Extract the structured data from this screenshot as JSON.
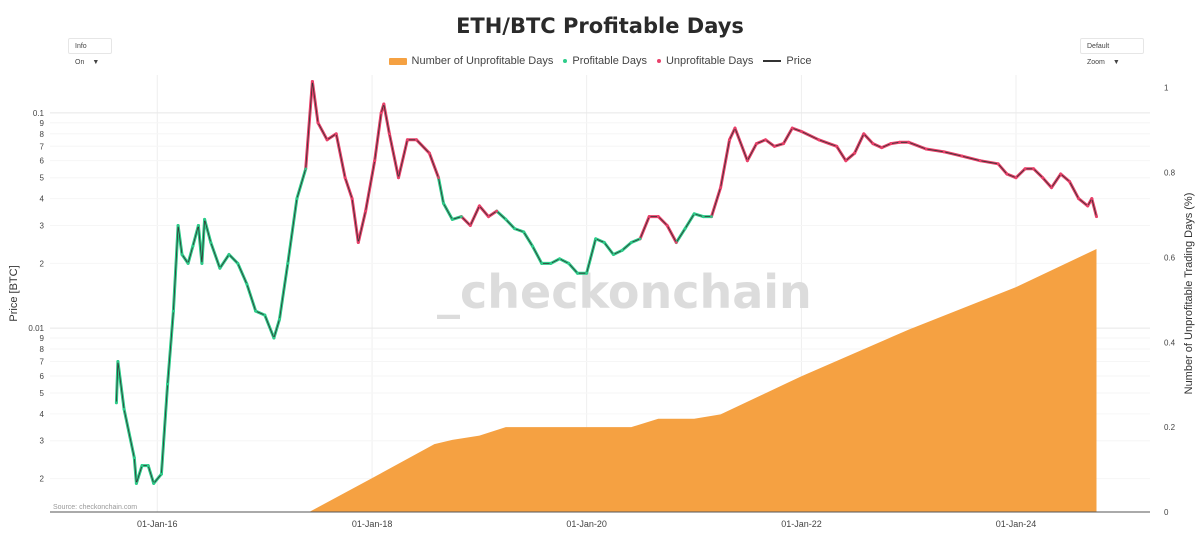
{
  "header": {
    "title": "ETH/BTC Profitable Days"
  },
  "controls": {
    "info_label": "Info On",
    "zoom_label": "Default Zoom"
  },
  "legend": [
    {
      "label": "Number of Unprofitable Days",
      "kind": "bar",
      "color": "#f5a142"
    },
    {
      "label": "Profitable Days",
      "kind": "dot",
      "color": "#2ecc8a"
    },
    {
      "label": "Unprofitable Days",
      "kind": "dot",
      "color": "#e8416a"
    },
    {
      "label": "Price",
      "kind": "line",
      "color": "#333333"
    }
  ],
  "watermark": "_checkonchain",
  "source": "Source: checkonchain.com",
  "chart_data": {
    "type": "line",
    "title": "ETH/BTC Profitable Days",
    "ylabel": "Price [BTC]",
    "y2label": "Number of Unprofitable Trading Days (%)",
    "y_scale": "log",
    "ylim": [
      0.0014,
      0.15
    ],
    "y2lim": [
      0,
      1.03
    ],
    "grid": true,
    "legend_position": "top-center",
    "x_ticks": [
      "01-Jan-16",
      "01-Jan-18",
      "01-Jan-20",
      "01-Jan-22",
      "01-Jan-24"
    ],
    "y_ticks_major": [
      "0.01",
      "0.1"
    ],
    "y_ticks_minor": [
      "2",
      "3",
      "4",
      "5",
      "6",
      "7",
      "8",
      "9"
    ],
    "y2_ticks": [
      "0",
      "0.2",
      "0.4",
      "0.6",
      "0.8",
      "1"
    ],
    "colors": {
      "profitable": "#2ecc8a",
      "unprofitable": "#e8416a",
      "area": "#f5a142",
      "price": "#333333"
    },
    "series": [
      {
        "name": "Price",
        "unit": "BTC",
        "points": [
          [
            "2015-08-15",
            0.0045
          ],
          [
            "2015-08-20",
            0.007
          ],
          [
            "2015-09-10",
            0.0042
          ],
          [
            "2015-10-15",
            0.0025
          ],
          [
            "2015-10-22",
            0.0019
          ],
          [
            "2015-11-10",
            0.0023
          ],
          [
            "2015-12-01",
            0.0023
          ],
          [
            "2015-12-20",
            0.0019
          ],
          [
            "2016-01-15",
            0.0021
          ],
          [
            "2016-02-05",
            0.0055
          ],
          [
            "2016-02-25",
            0.012
          ],
          [
            "2016-03-12",
            0.03
          ],
          [
            "2016-03-25",
            0.022
          ],
          [
            "2016-04-15",
            0.02
          ],
          [
            "2016-05-01",
            0.024
          ],
          [
            "2016-05-20",
            0.03
          ],
          [
            "2016-06-01",
            0.02
          ],
          [
            "2016-06-10",
            0.032
          ],
          [
            "2016-07-01",
            0.025
          ],
          [
            "2016-08-01",
            0.019
          ],
          [
            "2016-09-01",
            0.022
          ],
          [
            "2016-10-01",
            0.02
          ],
          [
            "2016-11-01",
            0.016
          ],
          [
            "2016-12-01",
            0.012
          ],
          [
            "2017-01-01",
            0.0115
          ],
          [
            "2017-02-01",
            0.009
          ],
          [
            "2017-02-20",
            0.011
          ],
          [
            "2017-03-20",
            0.02
          ],
          [
            "2017-04-20",
            0.04
          ],
          [
            "2017-05-20",
            0.055
          ],
          [
            "2017-06-12",
            0.14
          ],
          [
            "2017-07-01",
            0.09
          ],
          [
            "2017-08-01",
            0.075
          ],
          [
            "2017-09-01",
            0.08
          ],
          [
            "2017-10-01",
            0.05
          ],
          [
            "2017-10-25",
            0.04
          ],
          [
            "2017-11-15",
            0.025
          ],
          [
            "2017-12-10",
            0.035
          ],
          [
            "2018-01-10",
            0.06
          ],
          [
            "2018-02-01",
            0.1
          ],
          [
            "2018-02-10",
            0.11
          ],
          [
            "2018-03-01",
            0.08
          ],
          [
            "2018-04-01",
            0.05
          ],
          [
            "2018-05-01",
            0.075
          ],
          [
            "2018-06-01",
            0.075
          ],
          [
            "2018-07-15",
            0.065
          ],
          [
            "2018-08-15",
            0.05
          ],
          [
            "2018-09-01",
            0.038
          ],
          [
            "2018-10-01",
            0.032
          ],
          [
            "2018-11-01",
            0.033
          ],
          [
            "2018-12-01",
            0.03
          ],
          [
            "2019-01-01",
            0.037
          ],
          [
            "2019-02-01",
            0.033
          ],
          [
            "2019-03-01",
            0.035
          ],
          [
            "2019-04-01",
            0.032
          ],
          [
            "2019-05-01",
            0.029
          ],
          [
            "2019-06-01",
            0.028
          ],
          [
            "2019-07-01",
            0.024
          ],
          [
            "2019-08-01",
            0.02
          ],
          [
            "2019-09-01",
            0.02
          ],
          [
            "2019-10-01",
            0.021
          ],
          [
            "2019-11-01",
            0.02
          ],
          [
            "2019-12-01",
            0.018
          ],
          [
            "2020-01-01",
            0.018
          ],
          [
            "2020-02-01",
            0.026
          ],
          [
            "2020-03-01",
            0.025
          ],
          [
            "2020-04-01",
            0.022
          ],
          [
            "2020-05-01",
            0.023
          ],
          [
            "2020-06-01",
            0.025
          ],
          [
            "2020-07-01",
            0.026
          ],
          [
            "2020-08-01",
            0.033
          ],
          [
            "2020-09-01",
            0.033
          ],
          [
            "2020-10-01",
            0.03
          ],
          [
            "2020-11-01",
            0.025
          ],
          [
            "2020-12-01",
            0.029
          ],
          [
            "2021-01-01",
            0.034
          ],
          [
            "2021-02-01",
            0.033
          ],
          [
            "2021-03-01",
            0.033
          ],
          [
            "2021-04-01",
            0.045
          ],
          [
            "2021-05-01",
            0.075
          ],
          [
            "2021-05-20",
            0.085
          ],
          [
            "2021-07-01",
            0.06
          ],
          [
            "2021-08-01",
            0.072
          ],
          [
            "2021-09-01",
            0.075
          ],
          [
            "2021-10-01",
            0.07
          ],
          [
            "2021-11-01",
            0.072
          ],
          [
            "2021-12-01",
            0.085
          ],
          [
            "2022-01-01",
            0.082
          ],
          [
            "2022-03-01",
            0.075
          ],
          [
            "2022-05-01",
            0.07
          ],
          [
            "2022-06-01",
            0.06
          ],
          [
            "2022-07-01",
            0.065
          ],
          [
            "2022-08-01",
            0.08
          ],
          [
            "2022-09-01",
            0.072
          ],
          [
            "2022-10-01",
            0.069
          ],
          [
            "2022-11-01",
            0.072
          ],
          [
            "2022-12-01",
            0.073
          ],
          [
            "2023-01-01",
            0.073
          ],
          [
            "2023-03-01",
            0.068
          ],
          [
            "2023-05-01",
            0.066
          ],
          [
            "2023-07-01",
            0.063
          ],
          [
            "2023-09-01",
            0.06
          ],
          [
            "2023-11-01",
            0.058
          ],
          [
            "2023-12-01",
            0.052
          ],
          [
            "2024-01-01",
            0.05
          ],
          [
            "2024-02-01",
            0.055
          ],
          [
            "2024-03-01",
            0.055
          ],
          [
            "2024-04-01",
            0.05
          ],
          [
            "2024-05-01",
            0.045
          ],
          [
            "2024-06-01",
            0.052
          ],
          [
            "2024-07-01",
            0.048
          ],
          [
            "2024-08-01",
            0.04
          ],
          [
            "2024-09-01",
            0.037
          ],
          [
            "2024-09-15",
            0.04
          ],
          [
            "2024-10-01",
            0.033
          ]
        ]
      },
      {
        "name": "Number of Unprofitable Days",
        "unit": "fraction of trading days",
        "points": [
          [
            "2015-08-15",
            0
          ],
          [
            "2017-06-01",
            0
          ],
          [
            "2018-01-01",
            0.08
          ],
          [
            "2018-08-01",
            0.16
          ],
          [
            "2018-10-01",
            0.17
          ],
          [
            "2019-01-01",
            0.18
          ],
          [
            "2019-04-01",
            0.2
          ],
          [
            "2020-01-01",
            0.2
          ],
          [
            "2020-06-01",
            0.2
          ],
          [
            "2020-09-01",
            0.22
          ],
          [
            "2021-01-01",
            0.22
          ],
          [
            "2021-04-01",
            0.23
          ],
          [
            "2022-01-01",
            0.32
          ],
          [
            "2023-01-01",
            0.43
          ],
          [
            "2024-01-01",
            0.53
          ],
          [
            "2024-10-01",
            0.62
          ]
        ]
      }
    ]
  }
}
